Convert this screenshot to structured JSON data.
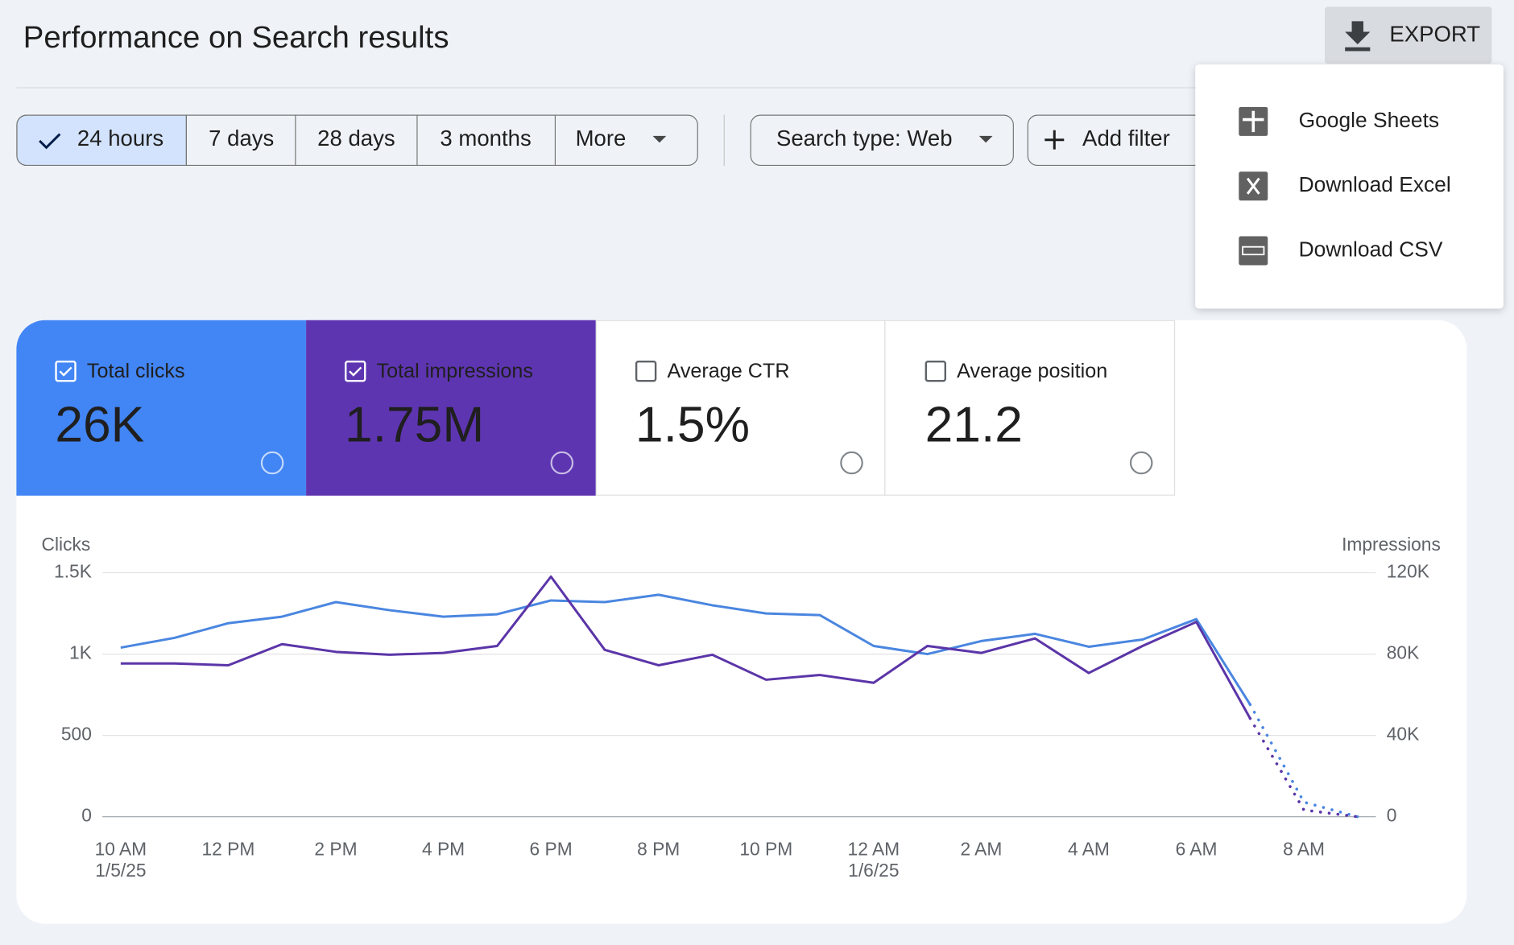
{
  "header": {
    "title": "Performance on Search results",
    "export": "EXPORT"
  },
  "date_filters": [
    "24 hours",
    "7 days",
    "28 days",
    "3 months",
    "More"
  ],
  "filters": {
    "search_type": "Search type: Web",
    "add_filter": "Add filter"
  },
  "export_menu": [
    "Google Sheets",
    "Download Excel",
    "Download CSV"
  ],
  "metrics": [
    {
      "label": "Total clicks",
      "value": "26K"
    },
    {
      "label": "Total impressions",
      "value": "1.75M"
    },
    {
      "label": "Average CTR",
      "value": "1.5%"
    },
    {
      "label": "Average position",
      "value": "21.2"
    }
  ],
  "chart_data": {
    "type": "line",
    "categories": [
      "10 AM\n1/5/25",
      null,
      "12 PM",
      null,
      "2 PM",
      null,
      "4 PM",
      null,
      "6 PM",
      null,
      "8 PM",
      null,
      "10 PM",
      null,
      "12 AM\n1/6/25",
      null,
      "2 AM",
      null,
      "4 AM",
      null,
      "6 AM",
      null,
      "8 AM",
      null
    ],
    "series": [
      {
        "name": "Clicks",
        "color": "#4a86e0",
        "values": [
          1040,
          1100,
          1190,
          1230,
          1320,
          1270,
          1230,
          1245,
          1330,
          1320,
          1365,
          1300,
          1250,
          1240,
          1050,
          1000,
          1080,
          1125,
          1045,
          1090,
          1215,
          690,
          90,
          0
        ]
      },
      {
        "name": "Impressions",
        "color": "#5b35a8",
        "axis": "y2",
        "values": [
          75400,
          75400,
          74500,
          84900,
          81100,
          79700,
          80600,
          84000,
          118100,
          82100,
          74500,
          79700,
          67400,
          69700,
          65900,
          84000,
          80600,
          87700,
          70700,
          84000,
          95800,
          48400,
          3300,
          0
        ]
      }
    ],
    "ylim": [
      0,
      1500
    ],
    "yticks": [
      0,
      500,
      {
        "value": 1000,
        "label": "1K"
      },
      {
        "value": 1500,
        "label": "1.5K"
      }
    ],
    "y2lim": [
      0,
      120000
    ],
    "y2ticks": [
      0,
      {
        "value": 40000,
        "label": "40K"
      },
      {
        "value": 80000,
        "label": "80K"
      },
      {
        "value": 120000,
        "label": "120K"
      }
    ],
    "grid": true
  }
}
